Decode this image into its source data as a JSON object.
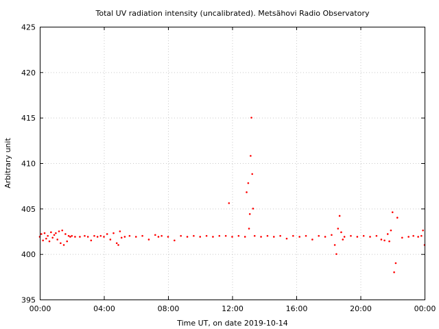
{
  "chart_data": {
    "type": "scatter",
    "title": "Total UV radiation intensity (uncalibrated). Metsähovi Radio Observatory",
    "xlabel": "Time UT, on date 2019-10-14",
    "ylabel": "Arbitrary unit",
    "xlim": [
      0,
      24
    ],
    "ylim": [
      395,
      425
    ],
    "x_ticks": [
      {
        "value": 0,
        "label": "00:00"
      },
      {
        "value": 4,
        "label": "04:00"
      },
      {
        "value": 8,
        "label": "08:00"
      },
      {
        "value": 12,
        "label": "12:00"
      },
      {
        "value": 16,
        "label": "16:00"
      },
      {
        "value": 20,
        "label": "20:00"
      },
      {
        "value": 24,
        "label": "00:00"
      }
    ],
    "y_ticks": [
      {
        "value": 395,
        "label": "395"
      },
      {
        "value": 400,
        "label": "400"
      },
      {
        "value": 405,
        "label": "405"
      },
      {
        "value": 410,
        "label": "410"
      },
      {
        "value": 415,
        "label": "415"
      },
      {
        "value": 420,
        "label": "420"
      },
      {
        "value": 425,
        "label": "425"
      }
    ],
    "grid": true,
    "marker_color": "#ff0000",
    "series": [
      {
        "x": [
          0.0,
          0.1,
          0.2,
          0.3,
          0.4,
          0.5,
          0.6,
          0.7,
          0.8,
          0.9,
          1.0,
          1.1,
          1.2,
          1.3,
          1.4,
          1.5,
          1.6,
          1.7,
          1.8,
          1.9,
          2.0,
          2.2,
          2.5,
          2.8,
          3.0,
          3.2,
          3.4,
          3.6,
          3.8,
          4.0,
          4.2,
          4.4,
          4.6,
          4.8,
          4.9,
          5.0,
          5.1,
          5.3,
          5.6,
          6.0,
          6.4,
          6.8,
          7.2,
          7.4,
          7.6,
          8.0,
          8.4,
          8.8,
          9.2,
          9.6,
          10.0,
          10.4,
          10.8,
          11.2,
          11.6,
          11.8,
          12.0,
          12.4,
          12.8,
          12.9,
          13.0,
          13.05,
          13.1,
          13.15,
          13.2,
          13.25,
          13.3,
          13.4,
          13.8,
          14.2,
          14.6,
          15.0,
          15.4,
          15.8,
          16.2,
          16.6,
          17.0,
          17.4,
          17.8,
          18.2,
          18.4,
          18.5,
          18.6,
          18.7,
          18.8,
          18.9,
          19.0,
          19.4,
          19.8,
          20.2,
          20.6,
          21.0,
          21.3,
          21.5,
          21.7,
          21.8,
          21.9,
          22.0,
          22.1,
          22.2,
          22.3,
          22.6,
          23.0,
          23.3,
          23.6,
          23.8,
          23.9,
          24.0
        ],
        "y": [
          401.9,
          402.2,
          401.5,
          402.3,
          401.7,
          402.0,
          401.4,
          402.4,
          401.8,
          402.1,
          402.3,
          401.6,
          402.5,
          401.2,
          402.6,
          401.0,
          402.2,
          401.4,
          402.0,
          401.9,
          402.0,
          401.9,
          401.9,
          402.0,
          401.9,
          401.5,
          402.0,
          401.9,
          402.0,
          401.9,
          402.2,
          401.6,
          402.3,
          401.2,
          401.0,
          402.5,
          401.8,
          401.9,
          402.0,
          401.9,
          402.0,
          401.6,
          402.1,
          401.9,
          402.0,
          401.9,
          401.5,
          402.0,
          401.9,
          402.0,
          401.9,
          402.0,
          401.9,
          402.0,
          402.0,
          405.6,
          401.9,
          402.0,
          401.9,
          406.8,
          407.8,
          402.8,
          404.4,
          410.8,
          415.0,
          408.8,
          405.0,
          402.0,
          401.9,
          402.0,
          401.9,
          402.0,
          401.7,
          402.0,
          401.9,
          402.0,
          401.6,
          402.0,
          401.9,
          402.1,
          401.0,
          400.0,
          402.8,
          404.2,
          402.4,
          401.6,
          401.9,
          402.0,
          401.9,
          402.0,
          401.9,
          402.0,
          401.6,
          401.5,
          402.2,
          401.4,
          402.6,
          404.6,
          398.0,
          399.0,
          404.0,
          401.8,
          401.9,
          402.0,
          401.9,
          402.0,
          402.6,
          401.0
        ]
      }
    ]
  }
}
